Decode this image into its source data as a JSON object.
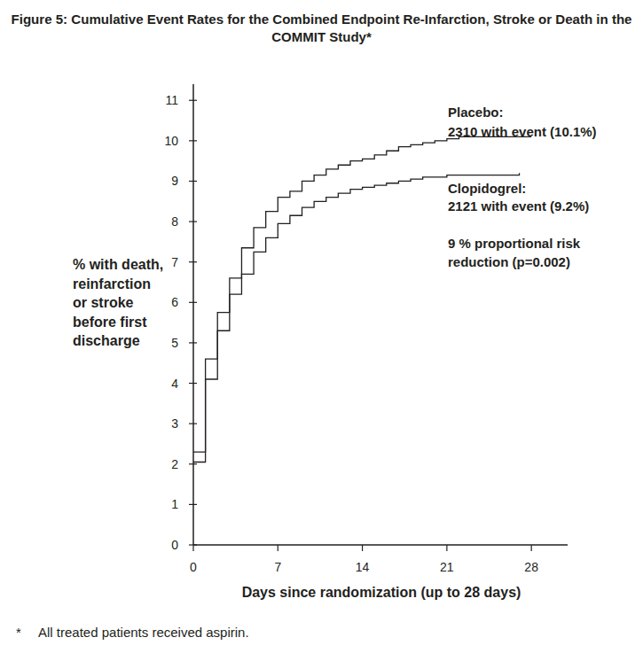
{
  "chart_data": {
    "type": "step",
    "title": [
      "Figure 5: Cumulative Event Rates for the Combined Endpoint Re-Infarction, Stroke or Death in the",
      "COMMIT Study*"
    ],
    "x_label": "Days since randomization (up to 28 days)",
    "y_label": [
      "% with death,",
      "reinfarction",
      "or stroke",
      "before first",
      "discharge"
    ],
    "xlim": [
      0,
      31
    ],
    "ylim": [
      0,
      11.4
    ],
    "xticks": [
      0,
      7,
      14,
      21,
      28
    ],
    "yticks": [
      0,
      1,
      2,
      3,
      4,
      5,
      6,
      7,
      8,
      9,
      10,
      11
    ],
    "grid": false,
    "series": [
      {
        "name": "Placebo:",
        "color": "#231f20",
        "line_style": "solid",
        "x": [
          0,
          1,
          2,
          3,
          4,
          5,
          6,
          7,
          8,
          9,
          10,
          11,
          12,
          13,
          14,
          15,
          16,
          17,
          18,
          19,
          20,
          21,
          22,
          28
        ],
        "values": [
          2.3,
          4.6,
          5.75,
          6.6,
          7.35,
          7.85,
          8.25,
          8.6,
          8.75,
          9.0,
          9.15,
          9.3,
          9.4,
          9.5,
          9.55,
          9.65,
          9.75,
          9.85,
          9.9,
          9.95,
          10.0,
          10.05,
          10.1,
          10.1
        ]
      },
      {
        "name": "Clopidogrel:",
        "color": "#231f20",
        "line_style": "solid",
        "x": [
          0,
          1,
          2,
          3,
          4,
          5,
          6,
          7,
          8,
          9,
          10,
          11,
          12,
          13,
          14,
          15,
          16,
          17,
          18,
          19,
          20,
          21,
          27
        ],
        "values": [
          2.05,
          4.1,
          5.3,
          6.2,
          6.7,
          7.25,
          7.6,
          7.95,
          8.15,
          8.35,
          8.5,
          8.6,
          8.7,
          8.8,
          8.85,
          8.9,
          8.95,
          9.0,
          9.05,
          9.1,
          9.1,
          9.15,
          9.2
        ]
      }
    ],
    "annotations": [
      "2310 with event (10.1%)",
      "2121 with event (9.2%)",
      "9 % proportional risk",
      "reduction (p=0.002)"
    ],
    "footnote": [
      "*",
      "All treated patients received aspirin."
    ]
  }
}
